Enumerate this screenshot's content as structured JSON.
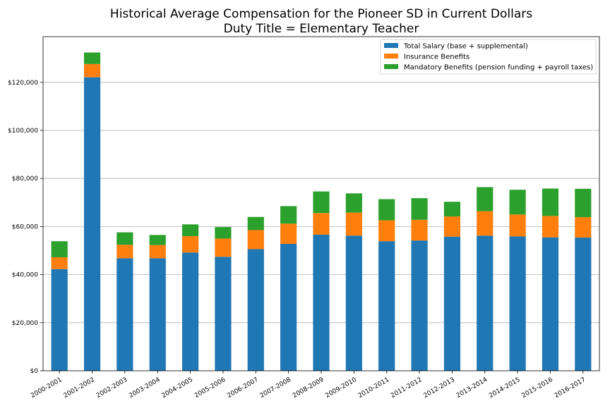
{
  "chart_data": {
    "type": "bar",
    "stacked": true,
    "title": "Historical Average Compensation for the Pioneer SD in Current Dollars",
    "subtitle": "Duty Title = Elementary Teacher",
    "xlabel": "",
    "ylabel": "",
    "ylim": [
      0,
      139000
    ],
    "yticks": [
      0,
      20000,
      40000,
      60000,
      80000,
      100000,
      120000
    ],
    "ytick_labels": [
      "$0",
      "$20,000",
      "$40,000",
      "$60,000",
      "$80,000",
      "$100,000",
      "$120,000"
    ],
    "grid": "horizontal",
    "legend_position": "top-right",
    "categories": [
      "2000-2001",
      "2001-2002",
      "2002-2003",
      "2003-2004",
      "2004-2005",
      "2005-2006",
      "2006-2007",
      "2007-2008",
      "2008-2009",
      "2009-2010",
      "2010-2011",
      "2011-2012",
      "2012-2013",
      "2013-2014",
      "2014-2015",
      "2015-2016",
      "2016-2017"
    ],
    "series": [
      {
        "name": "Total Salary (base + supplemental)",
        "color": "#1f77b4",
        "values": [
          42300,
          122100,
          46800,
          46800,
          49200,
          47400,
          50600,
          52800,
          56600,
          56200,
          53900,
          54200,
          55800,
          56200,
          55900,
          55500,
          55400
        ]
      },
      {
        "name": "Insurance Benefits",
        "color": "#ff7f0e",
        "values": [
          4900,
          5500,
          5600,
          5500,
          6800,
          7600,
          7900,
          8400,
          9000,
          9600,
          8700,
          8600,
          8400,
          10200,
          9100,
          8900,
          8500
        ]
      },
      {
        "name": "Mandatory Benefits (pension funding + payroll taxes)",
        "color": "#2ca02c",
        "values": [
          6700,
          4800,
          5200,
          4200,
          4900,
          4800,
          5500,
          7300,
          9000,
          8000,
          8800,
          9000,
          6100,
          10000,
          10300,
          11400,
          11800
        ]
      }
    ]
  }
}
